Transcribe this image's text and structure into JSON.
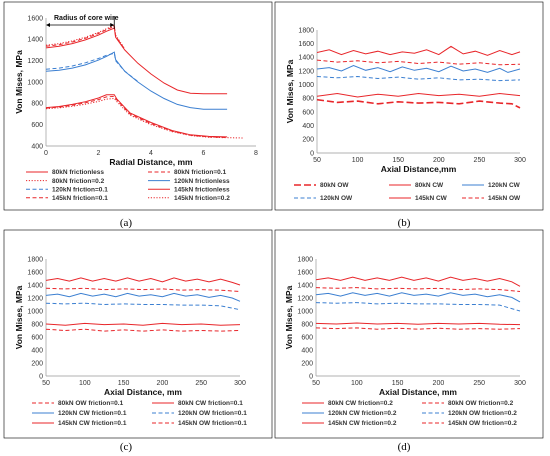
{
  "figure": {
    "panel_labels": [
      "(a)",
      "(b)",
      "(c)",
      "(d)"
    ]
  },
  "colors": {
    "red": "#e8262a",
    "blue": "#3b7fd1",
    "black": "#000000"
  },
  "chart_data": [
    {
      "type": "line",
      "panel": "(a)",
      "xlabel": "Radial Distance, mm",
      "ylabel": "Von Mises, MPa",
      "xlim": [
        0,
        8
      ],
      "ylim": [
        400,
        1600
      ],
      "xticks": [
        0,
        2,
        4,
        6,
        8
      ],
      "yticks": [
        400,
        600,
        800,
        1000,
        1200,
        1400,
        1600
      ],
      "annotation": "Radius of core wire",
      "annotation_span": [
        0,
        2.6
      ],
      "series": [
        {
          "name": "80kN frictionless",
          "color": "red",
          "dash": "solid",
          "x": [
            0,
            0.5,
            1,
            1.5,
            2,
            2.3,
            2.6,
            2.7,
            3.2,
            4,
            4.8,
            5.5,
            6.2,
            6.9
          ],
          "y": [
            760,
            770,
            790,
            815,
            850,
            880,
            880,
            840,
            710,
            620,
            545,
            505,
            490,
            485
          ]
        },
        {
          "name": "80kN friction=0.1",
          "color": "red",
          "dash": "dashed",
          "x": [
            0,
            0.5,
            1,
            1.5,
            2,
            2.3,
            2.6,
            2.7,
            3.2,
            4,
            4.8,
            5.5,
            6.2,
            6.9
          ],
          "y": [
            755,
            765,
            782,
            805,
            835,
            860,
            865,
            830,
            700,
            610,
            540,
            500,
            485,
            480
          ]
        },
        {
          "name": "80kN friction=0.2",
          "color": "red",
          "dash": "dotted",
          "x": [
            0,
            0.5,
            1,
            1.5,
            2,
            2.3,
            2.6,
            2.7,
            3.2,
            4,
            4.8,
            5.5,
            6.2,
            7.5
          ],
          "y": [
            750,
            758,
            772,
            792,
            818,
            840,
            845,
            815,
            690,
            600,
            535,
            498,
            482,
            475
          ]
        },
        {
          "name": "120kN frictionless",
          "color": "blue",
          "dash": "solid",
          "x": [
            0,
            0.5,
            1,
            1.5,
            2,
            2.3,
            2.6,
            2.65,
            3,
            3.5,
            4,
            4.5,
            5,
            5.5,
            6,
            6.9
          ],
          "y": [
            1100,
            1110,
            1130,
            1160,
            1205,
            1240,
            1280,
            1210,
            1100,
            1000,
            915,
            845,
            790,
            760,
            745,
            745
          ]
        },
        {
          "name": "120kN friction=0.1",
          "color": "blue",
          "dash": "dashed",
          "x": [
            0,
            0.5,
            1,
            1.5,
            2,
            2.3,
            2.6,
            2.65,
            3,
            3.5
          ],
          "y": [
            1120,
            1130,
            1150,
            1180,
            1220,
            1250,
            1270,
            1200,
            1100,
            1005
          ]
        },
        {
          "name": "145kN frictionless",
          "color": "red",
          "dash": "solid",
          "x": [
            0,
            0.5,
            1,
            1.5,
            2,
            2.3,
            2.6,
            2.65,
            3,
            3.5,
            4,
            4.5,
            5,
            5.5,
            6,
            6.9
          ],
          "y": [
            1320,
            1335,
            1360,
            1395,
            1440,
            1475,
            1505,
            1420,
            1300,
            1175,
            1075,
            990,
            925,
            895,
            890,
            890
          ]
        },
        {
          "name": "145kN friction=0.1",
          "color": "red",
          "dash": "dashed",
          "x": [
            0,
            0.5,
            1,
            1.5,
            2,
            2.3,
            2.6,
            2.65,
            3
          ],
          "y": [
            1335,
            1350,
            1375,
            1410,
            1455,
            1490,
            1520,
            1430,
            1305
          ]
        },
        {
          "name": "145kN friction=0.2",
          "color": "red",
          "dash": "dotted",
          "x": [
            0,
            0.5,
            1,
            1.5,
            2,
            2.3,
            2.6,
            2.65,
            3
          ],
          "y": [
            1345,
            1360,
            1385,
            1420,
            1465,
            1500,
            1530,
            1440,
            1310
          ]
        }
      ]
    },
    {
      "type": "line",
      "panel": "(b)",
      "xlabel": "Axial Distance,mm",
      "ylabel": "Von Mises, MPa",
      "xlim": [
        50,
        300
      ],
      "ylim": [
        0,
        1800
      ],
      "xticks": [
        50,
        100,
        150,
        200,
        250,
        300
      ],
      "yticks": [
        0,
        200,
        400,
        600,
        800,
        1000,
        1200,
        1400,
        1600,
        1800
      ],
      "series": [
        {
          "name": "80kN OW",
          "color": "red",
          "dash": "longdash",
          "x": [
            50,
            75,
            100,
            125,
            150,
            175,
            200,
            225,
            250,
            275,
            290,
            300
          ],
          "y": [
            780,
            740,
            760,
            720,
            750,
            730,
            740,
            720,
            760,
            730,
            720,
            660
          ]
        },
        {
          "name": "80kN CW",
          "color": "red",
          "dash": "solid",
          "x": [
            50,
            75,
            100,
            125,
            150,
            175,
            200,
            225,
            250,
            275,
            300
          ],
          "y": [
            830,
            870,
            820,
            860,
            830,
            870,
            840,
            860,
            830,
            870,
            840
          ]
        },
        {
          "name": "120kN CW",
          "color": "blue",
          "dash": "solid",
          "x": [
            50,
            65,
            80,
            95,
            110,
            125,
            140,
            155,
            170,
            185,
            200,
            215,
            230,
            245,
            260,
            275,
            285,
            300
          ],
          "y": [
            1230,
            1250,
            1200,
            1280,
            1210,
            1250,
            1190,
            1260,
            1210,
            1240,
            1190,
            1270,
            1200,
            1230,
            1180,
            1240,
            1180,
            1230
          ]
        },
        {
          "name": "120kN OW",
          "color": "blue",
          "dash": "dashed",
          "x": [
            50,
            75,
            100,
            125,
            150,
            175,
            200,
            225,
            250,
            275,
            300
          ],
          "y": [
            1120,
            1100,
            1120,
            1090,
            1110,
            1080,
            1100,
            1070,
            1080,
            1060,
            1070
          ]
        },
        {
          "name": "145kN CW",
          "color": "red",
          "dash": "solid",
          "x": [
            50,
            65,
            80,
            95,
            110,
            125,
            140,
            155,
            170,
            185,
            200,
            215,
            230,
            245,
            260,
            275,
            290,
            300
          ],
          "y": [
            1470,
            1510,
            1440,
            1500,
            1450,
            1490,
            1440,
            1480,
            1460,
            1510,
            1440,
            1560,
            1450,
            1490,
            1430,
            1500,
            1440,
            1480
          ]
        },
        {
          "name": "145kN OW",
          "color": "red",
          "dash": "dashed",
          "x": [
            50,
            75,
            100,
            125,
            150,
            175,
            200,
            225,
            250,
            275,
            300
          ],
          "y": [
            1360,
            1330,
            1350,
            1320,
            1340,
            1310,
            1330,
            1300,
            1320,
            1290,
            1300
          ]
        }
      ]
    },
    {
      "type": "line",
      "panel": "(c)",
      "xlabel": "Axial Distance, mm",
      "ylabel": "Von Mises, MPa",
      "xlim": [
        50,
        300
      ],
      "ylim": [
        0,
        1800
      ],
      "xticks": [
        50,
        100,
        150,
        200,
        250,
        300
      ],
      "yticks": [
        0,
        200,
        400,
        600,
        800,
        1000,
        1200,
        1400,
        1600,
        1800
      ],
      "series": [
        {
          "name": "80kN OW friction=0.1",
          "color": "red",
          "dash": "dashed",
          "x": [
            50,
            75,
            100,
            125,
            150,
            175,
            200,
            225,
            250,
            275,
            300
          ],
          "y": [
            720,
            700,
            720,
            690,
            710,
            690,
            710,
            690,
            700,
            690,
            700
          ]
        },
        {
          "name": "80kN CW friction=0.1",
          "color": "red",
          "dash": "solid",
          "x": [
            50,
            75,
            100,
            125,
            150,
            175,
            200,
            225,
            250,
            275,
            300
          ],
          "y": [
            800,
            780,
            810,
            790,
            800,
            780,
            810,
            790,
            800,
            780,
            790
          ]
        },
        {
          "name": "120kN CW friction=0.1",
          "color": "blue",
          "dash": "solid",
          "x": [
            50,
            65,
            80,
            95,
            110,
            125,
            140,
            155,
            170,
            185,
            200,
            215,
            230,
            245,
            260,
            275,
            290,
            300
          ],
          "y": [
            1240,
            1260,
            1220,
            1270,
            1230,
            1260,
            1220,
            1270,
            1230,
            1250,
            1220,
            1270,
            1230,
            1250,
            1210,
            1240,
            1200,
            1150
          ]
        },
        {
          "name": "120kN OW friction=0.1",
          "color": "blue",
          "dash": "dashed",
          "x": [
            50,
            75,
            100,
            125,
            150,
            175,
            200,
            225,
            250,
            275,
            300
          ],
          "y": [
            1120,
            1110,
            1120,
            1100,
            1110,
            1100,
            1100,
            1090,
            1090,
            1080,
            1020
          ]
        },
        {
          "name": "145kN CW friction=0.1",
          "color": "red",
          "dash": "solid",
          "x": [
            50,
            65,
            80,
            95,
            110,
            125,
            140,
            155,
            170,
            185,
            200,
            215,
            230,
            245,
            260,
            275,
            290,
            300
          ],
          "y": [
            1470,
            1500,
            1460,
            1510,
            1460,
            1500,
            1460,
            1510,
            1460,
            1500,
            1450,
            1510,
            1460,
            1490,
            1450,
            1490,
            1440,
            1400
          ]
        },
        {
          "name": "145kN OW friction=0.1",
          "color": "red",
          "dash": "dashed",
          "x": [
            50,
            75,
            100,
            125,
            150,
            175,
            200,
            225,
            250,
            275,
            300
          ],
          "y": [
            1350,
            1340,
            1350,
            1330,
            1340,
            1330,
            1340,
            1320,
            1330,
            1320,
            1300
          ]
        }
      ]
    },
    {
      "type": "line",
      "panel": "(d)",
      "xlabel": "Axial Distance, mm",
      "ylabel": "Von Mises, MPa",
      "xlim": [
        50,
        300
      ],
      "ylim": [
        0,
        1800
      ],
      "xticks": [
        50,
        100,
        150,
        200,
        250,
        300
      ],
      "yticks": [
        0,
        200,
        400,
        600,
        800,
        1000,
        1200,
        1400,
        1600,
        1800
      ],
      "series": [
        {
          "name": "80kN CW friction=0.2",
          "color": "red",
          "dash": "solid",
          "x": [
            50,
            75,
            100,
            125,
            150,
            175,
            200,
            225,
            250,
            275,
            300
          ],
          "y": [
            810,
            800,
            815,
            800,
            810,
            795,
            810,
            800,
            810,
            795,
            790
          ]
        },
        {
          "name": "80kN OW friction=0.2",
          "color": "red",
          "dash": "dashed",
          "x": [
            50,
            75,
            100,
            125,
            150,
            175,
            200,
            225,
            250,
            275,
            300
          ],
          "y": [
            740,
            730,
            740,
            720,
            735,
            720,
            735,
            720,
            730,
            720,
            730
          ]
        },
        {
          "name": "120kN CW friction=0.2",
          "color": "blue",
          "dash": "solid",
          "x": [
            50,
            65,
            80,
            95,
            110,
            125,
            140,
            155,
            170,
            185,
            200,
            215,
            230,
            245,
            260,
            275,
            290,
            300
          ],
          "y": [
            1250,
            1270,
            1230,
            1280,
            1240,
            1270,
            1230,
            1280,
            1240,
            1260,
            1230,
            1280,
            1240,
            1260,
            1220,
            1250,
            1210,
            1140
          ]
        },
        {
          "name": "120kN OW friction=0.2",
          "color": "blue",
          "dash": "dashed",
          "x": [
            50,
            75,
            100,
            125,
            150,
            175,
            200,
            225,
            250,
            275,
            300
          ],
          "y": [
            1130,
            1120,
            1130,
            1110,
            1120,
            1110,
            1110,
            1100,
            1100,
            1090,
            1000
          ]
        },
        {
          "name": "145kN CW friction=0.2",
          "color": "red",
          "dash": "solid",
          "x": [
            50,
            65,
            80,
            95,
            110,
            125,
            140,
            155,
            170,
            185,
            200,
            215,
            230,
            245,
            260,
            275,
            290,
            300
          ],
          "y": [
            1480,
            1510,
            1470,
            1520,
            1470,
            1510,
            1470,
            1520,
            1470,
            1510,
            1460,
            1520,
            1470,
            1500,
            1460,
            1500,
            1450,
            1380
          ]
        },
        {
          "name": "145kN OW friction=0.2",
          "color": "red",
          "dash": "dashed",
          "x": [
            50,
            75,
            100,
            125,
            150,
            175,
            200,
            225,
            250,
            275,
            300
          ],
          "y": [
            1360,
            1350,
            1360,
            1340,
            1350,
            1340,
            1350,
            1330,
            1340,
            1330,
            1300
          ]
        }
      ]
    }
  ]
}
